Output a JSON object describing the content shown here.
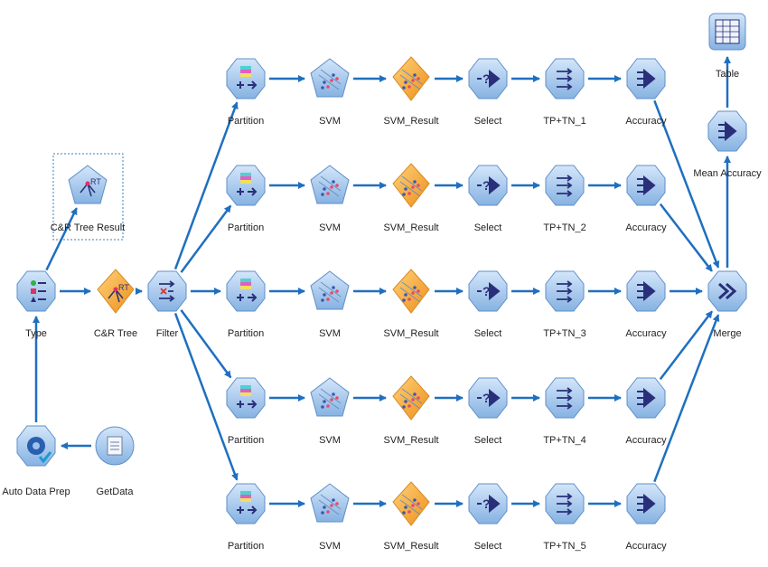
{
  "colors": {
    "node_blue": "#9fc3ea",
    "node_edge": "#5f8fc8",
    "nugget_orange": "#f4a832",
    "arrow": "#1f6fc0",
    "icon_dark": "#2a2f7a"
  },
  "nodes": [
    {
      "id": "table",
      "label": "Table",
      "kind": "output",
      "icon": "table-icon"
    },
    {
      "id": "mean_acc",
      "label": "Mean Accuracy",
      "kind": "process",
      "icon": "aggregate-icon"
    },
    {
      "id": "merge",
      "label": "Merge",
      "kind": "process",
      "icon": "merge-icon"
    },
    {
      "id": "type",
      "label": "Type",
      "kind": "process",
      "icon": "type-icon"
    },
    {
      "id": "crt",
      "label": "C&R Tree",
      "kind": "nugget",
      "icon": "crt-icon"
    },
    {
      "id": "crt_result",
      "label": "C&R Tree Result",
      "kind": "model",
      "icon": "crt-icon",
      "selected": true
    },
    {
      "id": "filter",
      "label": "Filter",
      "kind": "process",
      "icon": "filter-icon"
    },
    {
      "id": "adp",
      "label": "Auto Data Prep",
      "kind": "process",
      "icon": "gear-check-icon"
    },
    {
      "id": "getdata",
      "label": "GetData",
      "kind": "source",
      "icon": "file-icon"
    },
    {
      "id": "p1",
      "label": "Partition",
      "kind": "process",
      "icon": "partition-icon"
    },
    {
      "id": "s1",
      "label": "SVM",
      "kind": "model",
      "icon": "svm-icon"
    },
    {
      "id": "r1",
      "label": "SVM_Result",
      "kind": "nugget",
      "icon": "svm-icon"
    },
    {
      "id": "sel1",
      "label": "Select",
      "kind": "process",
      "icon": "select-icon"
    },
    {
      "id": "tp1",
      "label": "TP+TN_1",
      "kind": "process",
      "icon": "derive-icon"
    },
    {
      "id": "a1",
      "label": "Accuracy",
      "kind": "process",
      "icon": "aggregate-icon"
    },
    {
      "id": "p2",
      "label": "Partition",
      "kind": "process",
      "icon": "partition-icon"
    },
    {
      "id": "s2",
      "label": "SVM",
      "kind": "model",
      "icon": "svm-icon"
    },
    {
      "id": "r2",
      "label": "SVM_Result",
      "kind": "nugget",
      "icon": "svm-icon"
    },
    {
      "id": "sel2",
      "label": "Select",
      "kind": "process",
      "icon": "select-icon"
    },
    {
      "id": "tp2",
      "label": "TP+TN_2",
      "kind": "process",
      "icon": "derive-icon"
    },
    {
      "id": "a2",
      "label": "Accuracy",
      "kind": "process",
      "icon": "aggregate-icon"
    },
    {
      "id": "p3",
      "label": "Partition",
      "kind": "process",
      "icon": "partition-icon"
    },
    {
      "id": "s3",
      "label": "SVM",
      "kind": "model",
      "icon": "svm-icon"
    },
    {
      "id": "r3",
      "label": "SVM_Result",
      "kind": "nugget",
      "icon": "svm-icon"
    },
    {
      "id": "sel3",
      "label": "Select",
      "kind": "process",
      "icon": "select-icon"
    },
    {
      "id": "tp3",
      "label": "TP+TN_3",
      "kind": "process",
      "icon": "derive-icon"
    },
    {
      "id": "a3",
      "label": "Accuracy",
      "kind": "process",
      "icon": "aggregate-icon"
    },
    {
      "id": "p4",
      "label": "Partition",
      "kind": "process",
      "icon": "partition-icon"
    },
    {
      "id": "s4",
      "label": "SVM",
      "kind": "model",
      "icon": "svm-icon"
    },
    {
      "id": "r4",
      "label": "SVM_Result",
      "kind": "nugget",
      "icon": "svm-icon"
    },
    {
      "id": "sel4",
      "label": "Select",
      "kind": "process",
      "icon": "select-icon"
    },
    {
      "id": "tp4",
      "label": "TP+TN_4",
      "kind": "process",
      "icon": "derive-icon"
    },
    {
      "id": "a4",
      "label": "Accuracy",
      "kind": "process",
      "icon": "aggregate-icon"
    },
    {
      "id": "p5",
      "label": "Partition",
      "kind": "process",
      "icon": "partition-icon"
    },
    {
      "id": "s5",
      "label": "SVM",
      "kind": "model",
      "icon": "svm-icon"
    },
    {
      "id": "r5",
      "label": "SVM_Result",
      "kind": "nugget",
      "icon": "svm-icon"
    },
    {
      "id": "sel5",
      "label": "Select",
      "kind": "process",
      "icon": "select-icon"
    },
    {
      "id": "tp5",
      "label": "TP+TN_5",
      "kind": "process",
      "icon": "derive-icon"
    },
    {
      "id": "a5",
      "label": "Accuracy",
      "kind": "process",
      "icon": "aggregate-icon"
    }
  ],
  "edges": [
    [
      "getdata",
      "adp"
    ],
    [
      "adp",
      "type"
    ],
    [
      "type",
      "crt"
    ],
    [
      "type",
      "crt_result"
    ],
    [
      "crt",
      "filter"
    ],
    [
      "filter",
      "p1"
    ],
    [
      "filter",
      "p2"
    ],
    [
      "filter",
      "p3"
    ],
    [
      "filter",
      "p4"
    ],
    [
      "filter",
      "p5"
    ],
    [
      "p1",
      "s1"
    ],
    [
      "s1",
      "r1"
    ],
    [
      "r1",
      "sel1"
    ],
    [
      "sel1",
      "tp1"
    ],
    [
      "tp1",
      "a1"
    ],
    [
      "a1",
      "merge"
    ],
    [
      "p2",
      "s2"
    ],
    [
      "s2",
      "r2"
    ],
    [
      "r2",
      "sel2"
    ],
    [
      "sel2",
      "tp2"
    ],
    [
      "tp2",
      "a2"
    ],
    [
      "a2",
      "merge"
    ],
    [
      "p3",
      "s3"
    ],
    [
      "s3",
      "r3"
    ],
    [
      "r3",
      "sel3"
    ],
    [
      "sel3",
      "tp3"
    ],
    [
      "tp3",
      "a3"
    ],
    [
      "a3",
      "merge"
    ],
    [
      "p4",
      "s4"
    ],
    [
      "s4",
      "r4"
    ],
    [
      "r4",
      "sel4"
    ],
    [
      "sel4",
      "tp4"
    ],
    [
      "tp4",
      "a4"
    ],
    [
      "a4",
      "merge"
    ],
    [
      "p5",
      "s5"
    ],
    [
      "s5",
      "r5"
    ],
    [
      "r5",
      "sel5"
    ],
    [
      "sel5",
      "tp5"
    ],
    [
      "tp5",
      "a5"
    ],
    [
      "a5",
      "merge"
    ],
    [
      "merge",
      "mean_acc"
    ],
    [
      "mean_acc",
      "table"
    ]
  ]
}
